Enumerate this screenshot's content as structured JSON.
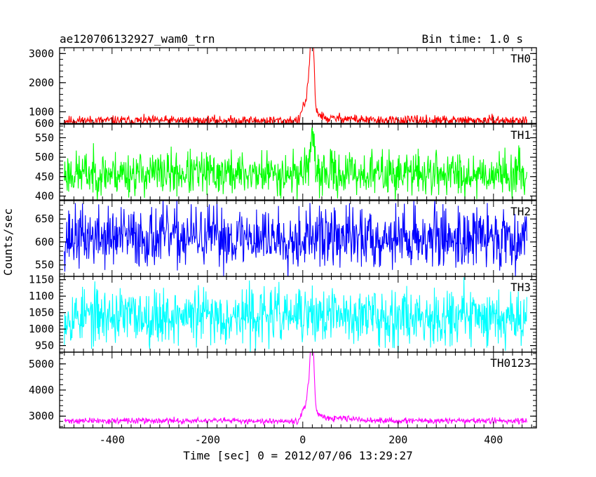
{
  "chart_data": {
    "type": "line",
    "title": "ae120706132927_wam0_trn",
    "subtitle": "Bin time: 1.0 s",
    "xlabel": "Time [sec] 0 = 2012/07/06 13:29:27",
    "ylabel": "Counts/sec",
    "xlim": [
      -510,
      490
    ],
    "xticks": [
      -400,
      -200,
      0,
      200,
      400
    ],
    "grid": false,
    "panels": [
      {
        "name": "TH0",
        "color": "#ff0000",
        "ylim": [
          600,
          3200
        ],
        "yticks": [
          600,
          1000,
          2000,
          3000
        ],
        "baseline": 700,
        "noise": 80,
        "seed": 11,
        "peak_time": 20,
        "features": [
          {
            "t": 2,
            "w": 4,
            "a": 550
          },
          {
            "t": 10,
            "w": 2.5,
            "a": 800
          },
          {
            "t": 16,
            "w": 3,
            "a": 1700
          },
          {
            "t": 21,
            "w": 3,
            "a": 2400
          },
          {
            "t": 26,
            "w": 10,
            "a": 300
          },
          {
            "t": 80,
            "w": 30,
            "a": 80
          }
        ]
      },
      {
        "name": "TH1",
        "color": "#00ff00",
        "ylim": [
          390,
          585
        ],
        "yticks": [
          400,
          450,
          500,
          550
        ],
        "baseline": 458,
        "noise": 28,
        "seed": 23,
        "peak_time": 20,
        "features": [
          {
            "t": 10,
            "w": 6,
            "a": 25
          },
          {
            "t": 18,
            "w": 3,
            "a": 50
          },
          {
            "t": 21,
            "w": 2,
            "a": 65
          }
        ]
      },
      {
        "name": "TH2",
        "color": "#0000ff",
        "ylim": [
          525,
          690
        ],
        "yticks": [
          550,
          600,
          650
        ],
        "baseline": 610,
        "noise": 33,
        "seed": 37,
        "peak_time": 0,
        "features": []
      },
      {
        "name": "TH3",
        "color": "#00ffff",
        "ylim": [
          930,
          1160
        ],
        "yticks": [
          950,
          1000,
          1050,
          1100,
          1150
        ],
        "baseline": 1040,
        "noise": 42,
        "seed": 53,
        "peak_time": 0,
        "features": []
      },
      {
        "name": "TH0123",
        "color": "#ff00ff",
        "ylim": [
          2550,
          5450
        ],
        "yticks": [
          3000,
          4000,
          5000
        ],
        "baseline": 2820,
        "noise": 55,
        "seed": 71,
        "peak_time": 20,
        "features": [
          {
            "t": 2,
            "w": 4,
            "a": 500
          },
          {
            "t": 10,
            "w": 2.5,
            "a": 800
          },
          {
            "t": 16,
            "w": 3,
            "a": 1800
          },
          {
            "t": 21,
            "w": 3,
            "a": 2500
          },
          {
            "t": 26,
            "w": 10,
            "a": 300
          },
          {
            "t": 80,
            "w": 30,
            "a": 100
          }
        ]
      }
    ],
    "series_samples": {
      "t_start": -500,
      "t_end": 470,
      "step": 1
    }
  }
}
